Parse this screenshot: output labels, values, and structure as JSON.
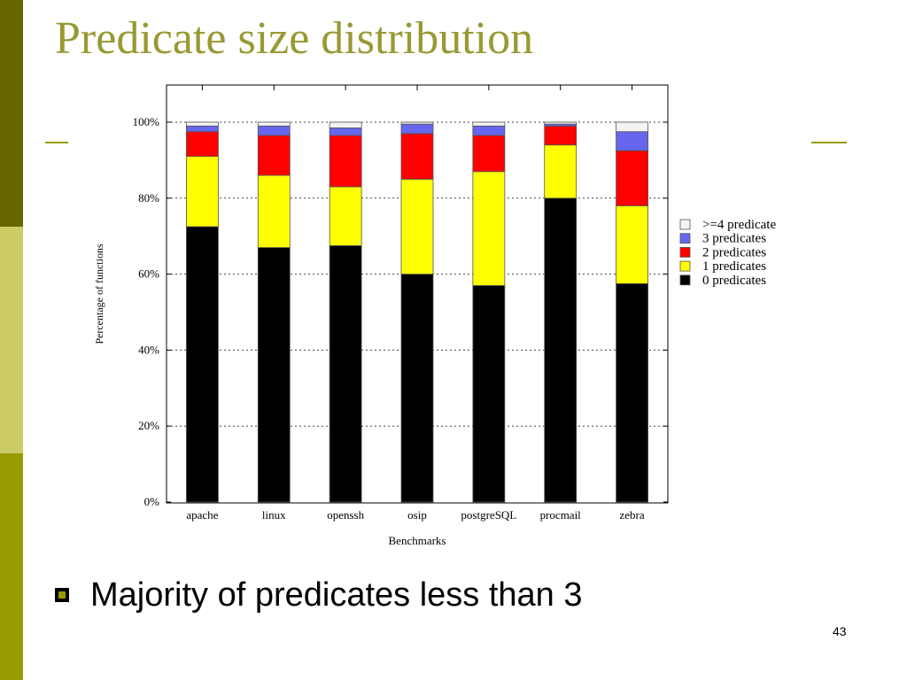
{
  "slide": {
    "title": "Predicate size distribution",
    "bullet": "Majority of predicates less than 3",
    "page_number": "43"
  },
  "colors": {
    "sidebar_dark": "#666600",
    "sidebar_light": "#cccc66",
    "sidebar_mid": "#999900",
    "title": "#999933",
    "accent_line": "#999900",
    "bullet_fill": "#999900"
  },
  "chart_data": {
    "type": "bar",
    "stacked": true,
    "title": "",
    "xlabel": "Benchmarks",
    "ylabel": "Percentage of functions",
    "ylim": [
      0,
      100
    ],
    "y_ticks": [
      "0%",
      "20%",
      "40%",
      "60%",
      "80%",
      "100%"
    ],
    "y_grid": true,
    "legend_position": "right",
    "categories": [
      "apache",
      "linux",
      "openssh",
      "osip",
      "postgreSQL",
      "procmail",
      "zebra"
    ],
    "series": [
      {
        "name": "0 predicates",
        "color": "#000000",
        "values": [
          72.5,
          67,
          67.5,
          60,
          57,
          80,
          57.5
        ]
      },
      {
        "name": "1 predicates",
        "color": "#ffff00",
        "values": [
          18.5,
          19,
          15.5,
          25,
          30,
          14,
          20.5
        ]
      },
      {
        "name": "2 predicates",
        "color": "#ff0000",
        "values": [
          6.5,
          10.5,
          13.5,
          12,
          9.5,
          5,
          14.5
        ]
      },
      {
        "name": "3 predicates",
        "color": "#6666ee",
        "values": [
          1.5,
          2.5,
          2,
          2.5,
          2.5,
          0.5,
          5
        ]
      },
      {
        "name": ">=4 predicate",
        "color": "#f4f4f4",
        "values": [
          1,
          1,
          1.5,
          0.5,
          1,
          0.5,
          2.5
        ]
      }
    ]
  }
}
